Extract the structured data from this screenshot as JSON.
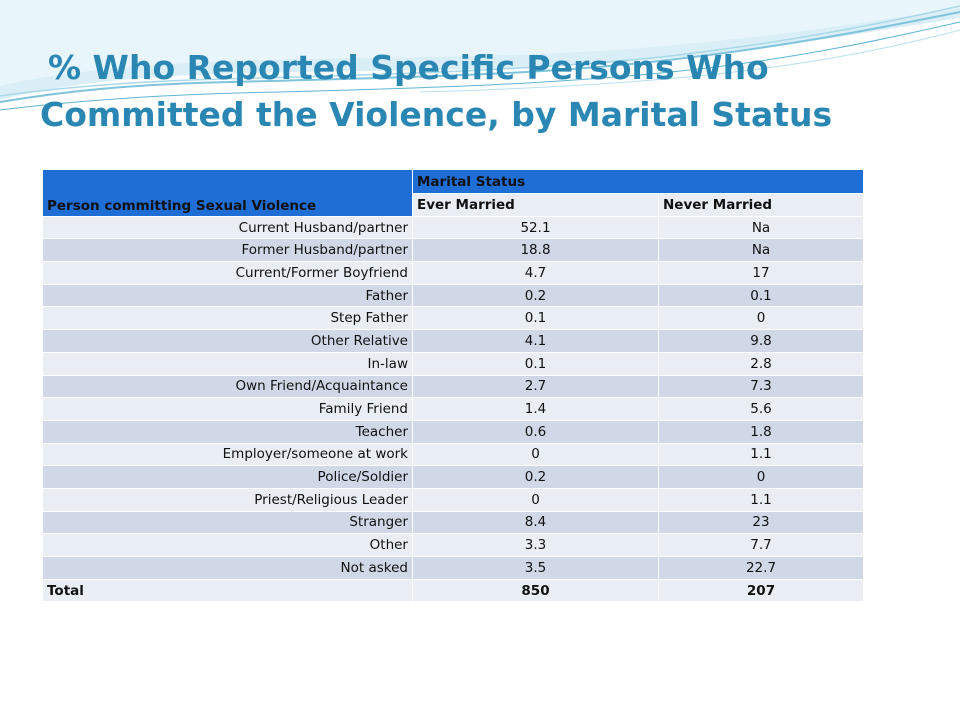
{
  "title": {
    "line1": "% Who Reported Specific Persons Who",
    "line2": "Committed the Violence, by Marital Status"
  },
  "table": {
    "row_header": "Person committing Sexual Violence",
    "group_header": "Marital Status",
    "columns": [
      "Ever Married",
      "Never Married"
    ],
    "rows": [
      {
        "label": "Current Husband/partner",
        "ever": "52.1",
        "never": "Na"
      },
      {
        "label": "Former Husband/partner",
        "ever": "18.8",
        "never": "Na"
      },
      {
        "label": "Current/Former Boyfriend",
        "ever": "4.7",
        "never": "17"
      },
      {
        "label": "Father",
        "ever": "0.2",
        "never": "0.1"
      },
      {
        "label": "Step Father",
        "ever": "0.1",
        "never": "0"
      },
      {
        "label": "Other Relative",
        "ever": "4.1",
        "never": "9.8"
      },
      {
        "label": "In-law",
        "ever": "0.1",
        "never": "2.8"
      },
      {
        "label": "Own Friend/Acquaintance",
        "ever": "2.7",
        "never": "7.3"
      },
      {
        "label": "Family Friend",
        "ever": "1.4",
        "never": "5.6"
      },
      {
        "label": "Teacher",
        "ever": "0.6",
        "never": "1.8"
      },
      {
        "label": "Employer/someone at work",
        "ever": "0",
        "never": "1.1"
      },
      {
        "label": "Police/Soldier",
        "ever": "0.2",
        "never": "0"
      },
      {
        "label": "Priest/Religious Leader",
        "ever": "0",
        "never": "1.1"
      },
      {
        "label": "Stranger",
        "ever": "8.4",
        "never": "23"
      },
      {
        "label": "Other",
        "ever": "3.3",
        "never": "7.7"
      },
      {
        "label": "Not asked",
        "ever": "3.5",
        "never": "22.7"
      },
      {
        "label": "Total",
        "ever": "850",
        "never": "207"
      }
    ]
  },
  "colors": {
    "title": "#2a86b3",
    "header_blue": "#1e6ed6",
    "row_light": "#e9edf4",
    "row_dark": "#d0d8e8",
    "wave_light": "#cfe9f3",
    "wave_teal": "#7fc3dc"
  }
}
